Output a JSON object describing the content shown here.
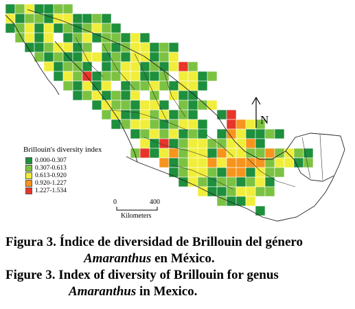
{
  "legend": {
    "title": "Brillouin's diversity index",
    "items": [
      {
        "label": "0.000-0.307",
        "color": "#1e8f3c"
      },
      {
        "label": "0.307-0.613",
        "color": "#7cc242"
      },
      {
        "label": "0.613-0.920",
        "color": "#f0ee3a"
      },
      {
        "label": "0.920-1.227",
        "color": "#f7941d"
      },
      {
        "label": "1.227-1.534",
        "color": "#e8352a"
      }
    ]
  },
  "scale_bar": {
    "start_label": "0",
    "end_label": "400",
    "unit_label": "Kilometers"
  },
  "north_arrow": {
    "label": "N"
  },
  "caption": {
    "es_line1": "Figura 3. Índice de diversidad de Brillouin del género",
    "es_genus": "Amaranthus",
    "es_line2_rest": " en México.",
    "en_line1": "Figure 3. Index of diversity of Brillouin for genus",
    "en_genus": "Amaranthus",
    "en_line2_rest": " in Mexico."
  }
}
